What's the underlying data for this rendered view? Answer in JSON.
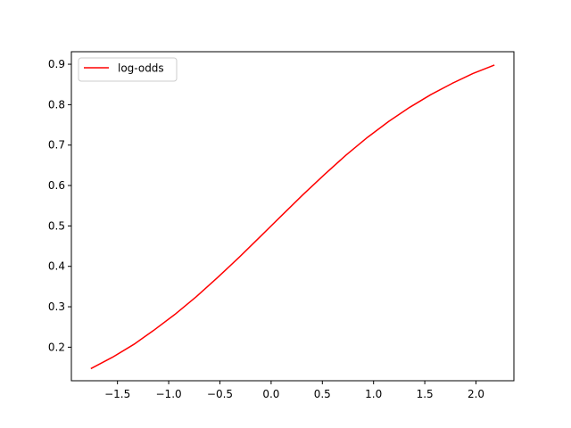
{
  "chart_data": {
    "type": "line",
    "title": "",
    "xlabel": "",
    "ylabel": "",
    "xlim": [
      -1.95,
      2.37
    ],
    "ylim": [
      0.117,
      0.931
    ],
    "xticks": [
      -1.5,
      -1.0,
      -0.5,
      0.0,
      0.5,
      1.0,
      1.5,
      2.0
    ],
    "xtick_labels": [
      "−1.5",
      "−1.0",
      "−0.5",
      "0.0",
      "0.5",
      "1.0",
      "1.5",
      "2.0"
    ],
    "yticks": [
      0.2,
      0.3,
      0.4,
      0.5,
      0.6,
      0.7,
      0.8,
      0.9
    ],
    "ytick_labels": [
      "0.2",
      "0.3",
      "0.4",
      "0.5",
      "0.6",
      "0.7",
      "0.8",
      "0.9"
    ],
    "grid": false,
    "legend_position": "upper-left",
    "series": [
      {
        "name": "log-odds",
        "color": "#ff0000",
        "x": [
          -1.76,
          -1.55,
          -1.34,
          -1.15,
          -0.94,
          -0.73,
          -0.52,
          -0.31,
          -0.1,
          0.1,
          0.31,
          0.52,
          0.73,
          0.94,
          1.15,
          1.35,
          1.56,
          1.77,
          1.97,
          2.18
        ],
        "y": [
          0.147,
          0.175,
          0.207,
          0.241,
          0.281,
          0.325,
          0.373,
          0.423,
          0.475,
          0.525,
          0.577,
          0.627,
          0.675,
          0.719,
          0.759,
          0.793,
          0.825,
          0.853,
          0.877,
          0.898
        ]
      }
    ]
  }
}
